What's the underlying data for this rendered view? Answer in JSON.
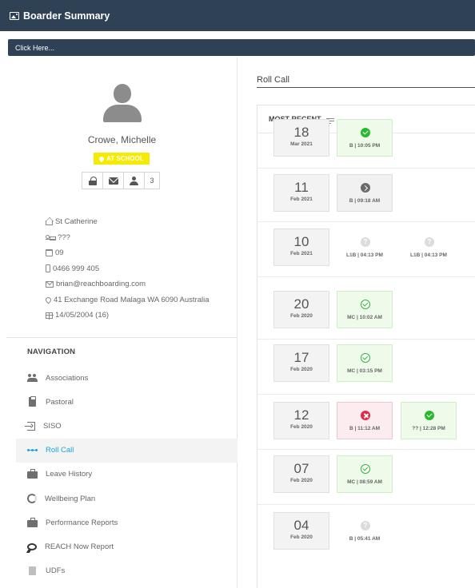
{
  "window": {
    "title": "Boarder Summary",
    "icon": "image-icon"
  },
  "clickbar": {
    "label": "Click Here..."
  },
  "profile": {
    "name": "Crowe, Michelle",
    "status": "AT SCHOOL",
    "status_color": "#f5ea00",
    "actions": [
      {
        "icon": "lock-icon"
      },
      {
        "icon": "mail-icon"
      },
      {
        "icon": "user-icon"
      }
    ],
    "action_count": "3",
    "details": [
      {
        "icon": "home-icon",
        "text": "St Catherine"
      },
      {
        "icon": "bed-icon",
        "text": "???"
      },
      {
        "icon": "calendar-icon",
        "text": "09"
      },
      {
        "icon": "phone-icon",
        "text": "0466 999 405"
      },
      {
        "icon": "mail-outline-icon",
        "text": "brian@reachboarding.com"
      },
      {
        "icon": "location-icon",
        "text": "41 Exchange Road Malaga WA 6090 Australia"
      },
      {
        "icon": "birthday-icon",
        "text": "14/05/2004 (16)"
      }
    ]
  },
  "navigation": {
    "heading": "NAVIGATION",
    "active_color": "#1aa3e0",
    "items": [
      {
        "label": "Associations",
        "icon": "associations-icon",
        "active": false
      },
      {
        "label": "Pastoral",
        "icon": "clipboard-icon",
        "active": false
      },
      {
        "label": "SISO",
        "icon": "sign-in-icon",
        "active": false
      },
      {
        "label": "Roll Call",
        "icon": "roll-call-icon",
        "active": true
      },
      {
        "label": "Leave History",
        "icon": "briefcase-icon",
        "active": false
      },
      {
        "label": "Wellbeing Plan",
        "icon": "ring-icon",
        "active": false
      },
      {
        "label": "Performance Reports",
        "icon": "briefcase-icon",
        "active": false
      },
      {
        "label": "REACH Now Report",
        "icon": "chat-icon",
        "active": false
      },
      {
        "label": "UDFs",
        "icon": "document-icon",
        "active": false
      }
    ]
  },
  "rollcall": {
    "title": "Roll Call",
    "sort_label": "MOST RECENT",
    "entries": [
      {
        "day": "18",
        "month": "Mar 2021",
        "statuses": [
          {
            "type": "green",
            "icon": "check-circle-icon",
            "label": "B | 10:05 PM"
          }
        ]
      },
      {
        "day": "11",
        "month": "Feb 2021",
        "statuses": [
          {
            "type": "grey",
            "icon": "arrow-circle-icon",
            "label": "B | 09:18 AM"
          }
        ]
      },
      {
        "day": "10",
        "month": "Feb 2021",
        "statuses": [
          {
            "type": "none",
            "icon": "question-circle-icon",
            "label": "L1B | 04:13 PM"
          },
          {
            "type": "none",
            "icon": "question-circle-icon",
            "label": "L1B | 04:13 PM"
          }
        ]
      },
      {
        "day": "20",
        "month": "Feb 2020",
        "statuses": [
          {
            "type": "green",
            "icon": "check-outline-icon",
            "label": "MC | 10:02 AM"
          }
        ]
      },
      {
        "day": "17",
        "month": "Feb 2020",
        "statuses": [
          {
            "type": "green",
            "icon": "check-outline-icon",
            "label": "MC | 03:15 PM"
          }
        ]
      },
      {
        "day": "12",
        "month": "Feb 2020",
        "statuses": [
          {
            "type": "red",
            "icon": "x-circle-icon",
            "label": "B | 11:12 AM"
          },
          {
            "type": "green",
            "icon": "check-circle-icon",
            "label": "?? | 12:28 PM"
          }
        ]
      },
      {
        "day": "07",
        "month": "Feb 2020",
        "statuses": [
          {
            "type": "green",
            "icon": "check-outline-icon",
            "label": "MC | 08:59 AM"
          }
        ]
      },
      {
        "day": "04",
        "month": "Feb 2020",
        "statuses": [
          {
            "type": "none",
            "icon": "question-circle-icon",
            "label": "B | 05:41 AM"
          }
        ]
      }
    ]
  }
}
